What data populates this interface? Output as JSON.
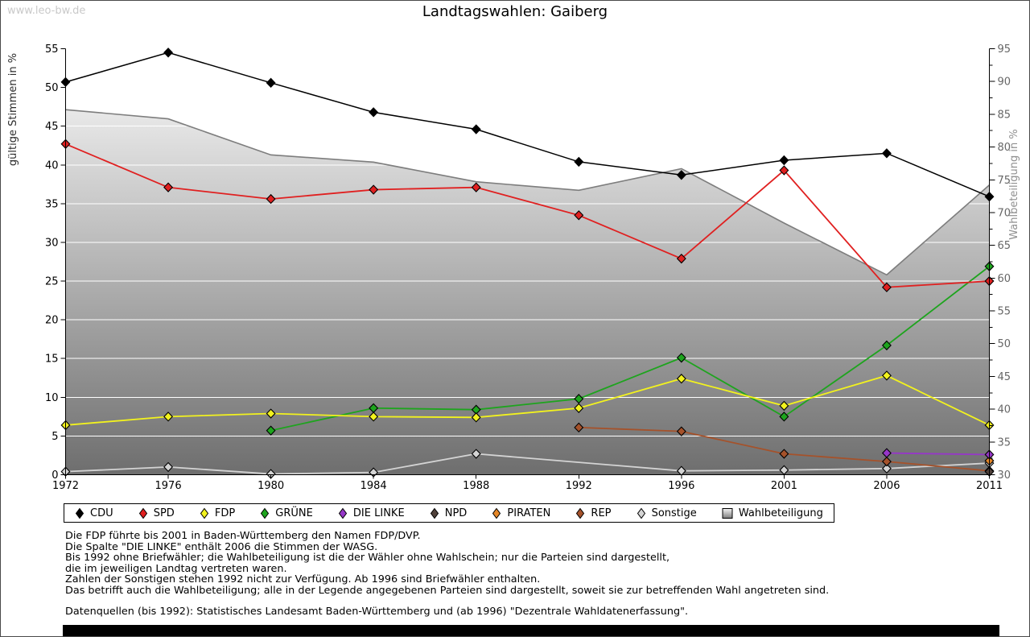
{
  "page": {
    "watermark": "www.leo-bw.de",
    "title": "Landtagswahlen: Gaiberg"
  },
  "chart_data": {
    "type": "line",
    "title": "Landtagswahlen: Gaiberg",
    "categories": [
      "1972",
      "1976",
      "1980",
      "1984",
      "1988",
      "1992",
      "1996",
      "2001",
      "2006",
      "2011"
    ],
    "xlabel": "",
    "ylabel_left": "gültige Stimmen in %",
    "ylabel_right": "Wahlbeteiligung in %",
    "ylim_left": [
      0,
      55
    ],
    "ylim_right": [
      30,
      95
    ],
    "ytick_step_left": 5,
    "ytick_step_right": 5,
    "grid": "horizontal white lines every 5 (left scale)",
    "legend_position": "bottom",
    "series": [
      {
        "name": "CDU",
        "color": "#000000",
        "axis": "left",
        "values": [
          50.7,
          54.5,
          50.6,
          46.8,
          44.6,
          40.4,
          38.7,
          40.6,
          41.5,
          35.9
        ]
      },
      {
        "name": "SPD",
        "color": "#e02020",
        "axis": "left",
        "values": [
          42.7,
          37.1,
          35.6,
          36.8,
          37.1,
          33.5,
          27.9,
          39.3,
          24.2,
          25.0
        ]
      },
      {
        "name": "FDP",
        "color": "#f2f21e",
        "axis": "left",
        "values": [
          6.4,
          7.5,
          7.9,
          7.5,
          7.4,
          8.6,
          12.4,
          8.9,
          12.8,
          6.4
        ]
      },
      {
        "name": "GRÜNE",
        "color": "#1ea41e",
        "axis": "left",
        "values": [
          null,
          null,
          5.7,
          8.6,
          8.4,
          9.8,
          15.1,
          7.5,
          16.7,
          26.9
        ]
      },
      {
        "name": "DIE LINKE",
        "color": "#9637c8",
        "axis": "left",
        "values": [
          null,
          null,
          null,
          null,
          null,
          null,
          null,
          null,
          2.8,
          2.6
        ]
      },
      {
        "name": "NPD",
        "color": "#50413a",
        "axis": "left",
        "values": [
          null,
          null,
          null,
          null,
          null,
          null,
          null,
          null,
          null,
          0.4
        ]
      },
      {
        "name": "PIRATEN",
        "color": "#e58728",
        "axis": "left",
        "values": [
          null,
          null,
          null,
          null,
          null,
          null,
          null,
          null,
          null,
          1.8
        ]
      },
      {
        "name": "REP",
        "color": "#a5522b",
        "axis": "left",
        "values": [
          null,
          null,
          null,
          null,
          null,
          6.1,
          5.6,
          2.7,
          1.7,
          0.5
        ]
      },
      {
        "name": "Sonstige",
        "color": "#d4d4d4",
        "axis": "left",
        "values": [
          0.4,
          1.0,
          0.1,
          0.3,
          2.7,
          null,
          0.5,
          0.6,
          0.8,
          1.5
        ]
      }
    ],
    "area_series": {
      "name": "Wahlbeteiligung",
      "axis": "right",
      "line_color": "#7d7d7d",
      "fill": "vertical gradient white to gray",
      "values": [
        85.7,
        84.3,
        78.8,
        77.7,
        74.7,
        73.4,
        76.7,
        68.4,
        60.5,
        74.2
      ]
    }
  },
  "legend": {
    "items": [
      {
        "label": "CDU",
        "color": "#000000",
        "shape": "diamond"
      },
      {
        "label": "SPD",
        "color": "#e02020",
        "shape": "diamond"
      },
      {
        "label": "FDP",
        "color": "#f2f21e",
        "shape": "diamond"
      },
      {
        "label": "GRÜNE",
        "color": "#1ea41e",
        "shape": "diamond"
      },
      {
        "label": "DIE LINKE",
        "color": "#9637c8",
        "shape": "diamond"
      },
      {
        "label": "NPD",
        "color": "#50413a",
        "shape": "diamond"
      },
      {
        "label": "PIRATEN",
        "color": "#e58728",
        "shape": "diamond"
      },
      {
        "label": "REP",
        "color": "#a5522b",
        "shape": "diamond"
      },
      {
        "label": "Sonstige",
        "color": "#d4d4d4",
        "shape": "diamond"
      },
      {
        "label": "Wahlbeteiligung",
        "color": "#9a9a9a",
        "shape": "square-gradient"
      }
    ]
  },
  "footnotes": [
    "Die FDP führte bis 2001 in Baden-Württemberg den Namen FDP/DVP.",
    "Die Spalte \"DIE LINKE\" enthält 2006 die Stimmen der WASG.",
    "Bis 1992 ohne Briefwähler; die Wahlbeteiligung ist die der Wähler ohne Wahlschein; nur die Parteien sind dargestellt,",
    "die im jeweiligen Landtag vertreten waren.",
    "Zahlen der Sonstigen stehen 1992 nicht zur Verfügung. Ab 1996 sind Briefwähler enthalten.",
    "Das betrifft auch die Wahlbeteiligung; alle in der Legende angegebenen Parteien sind dargestellt, soweit sie zur betreffenden Wahl angetreten sind.",
    "",
    "Datenquellen (bis 1992): Statistisches Landesamt Baden-Württemberg und (ab 1996) \"Dezentrale Wahldatenerfassung\"."
  ]
}
